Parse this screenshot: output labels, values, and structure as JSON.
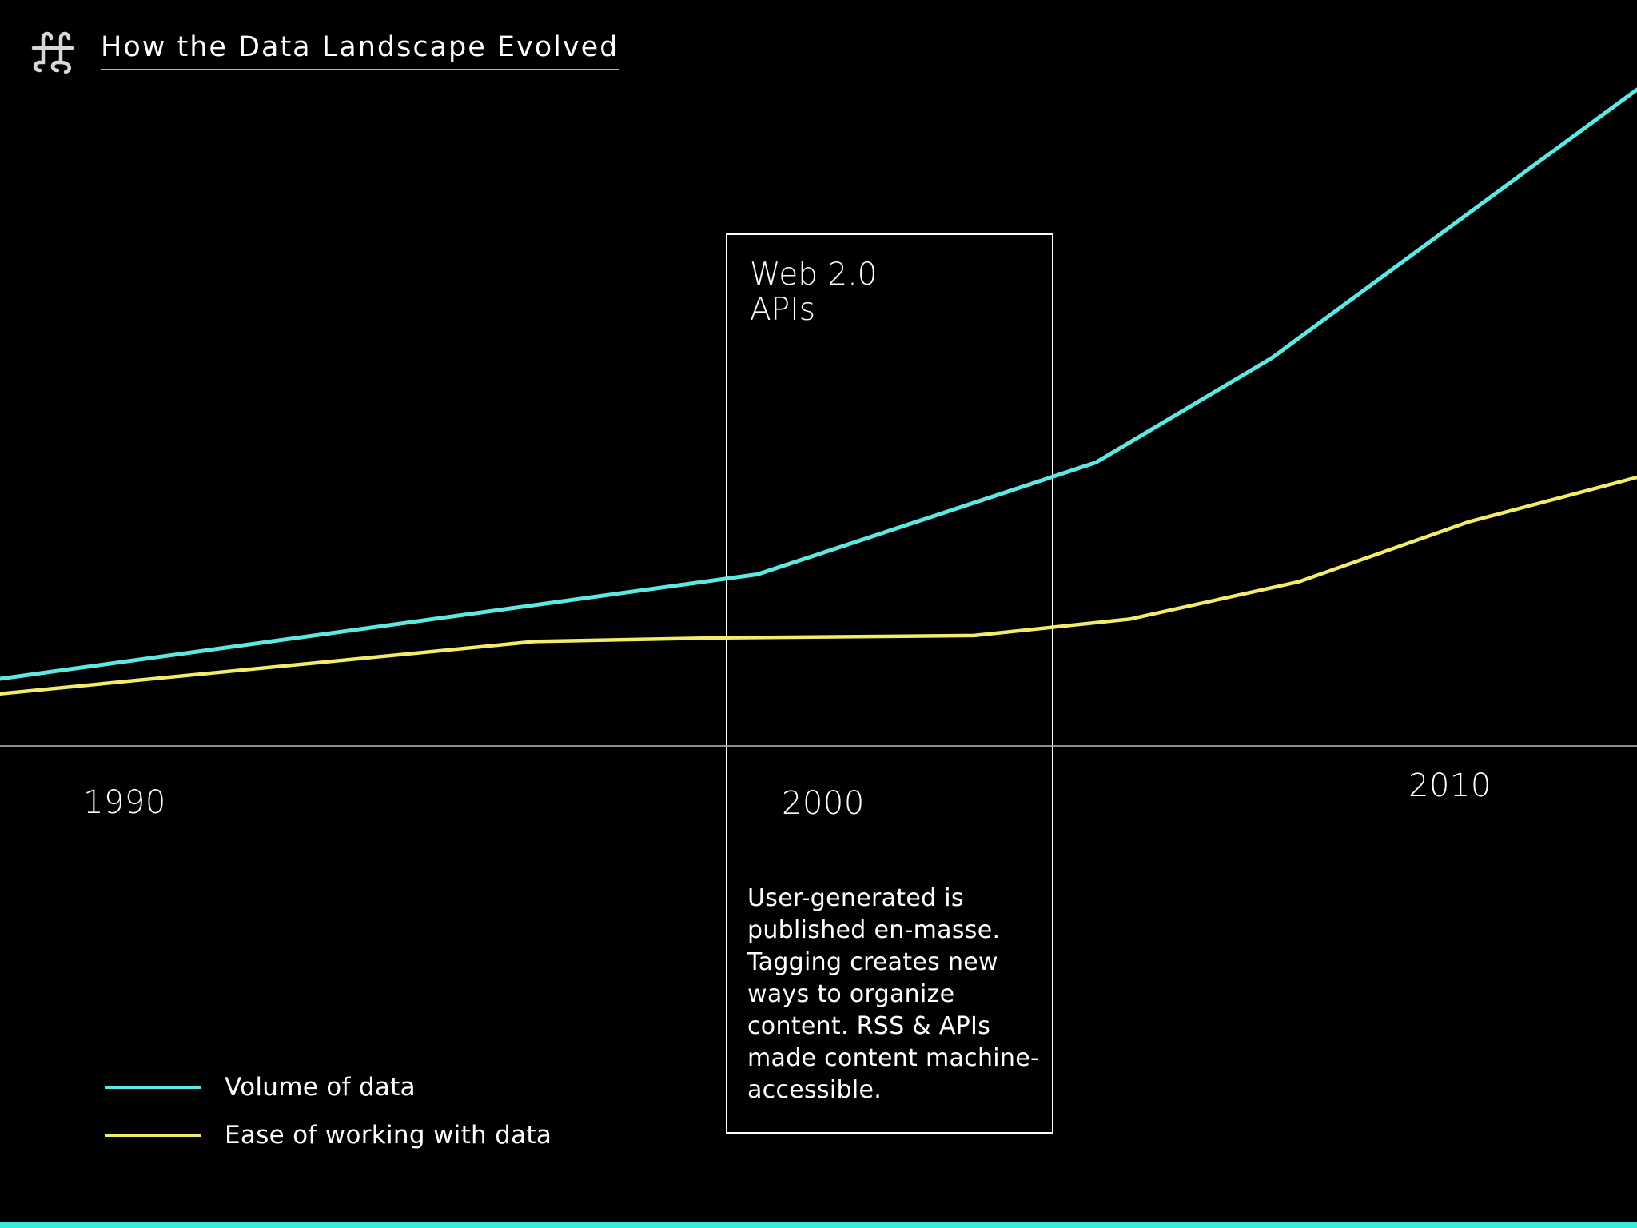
{
  "header": {
    "title": "How the Data Landscape Evolved",
    "logo_icon": "ampersand-logo-icon"
  },
  "colors": {
    "background": "#000000",
    "accent": "#3ee6e0",
    "volume_line": "#5ee8e4",
    "ease_line": "#f2ec6a",
    "annotation_border": "#ffffff",
    "axis": "#bbbbbb"
  },
  "chart_data": {
    "type": "line",
    "title": "How the Data Landscape Evolved",
    "xlabel": "",
    "ylabel": "",
    "xlim": [
      1988.3,
      2012.5
    ],
    "ylim": [
      0,
      100
    ],
    "x_ticks": [
      {
        "value": 1990,
        "label": "1990"
      },
      {
        "value": 2000,
        "label": "2000"
      },
      {
        "value": 2010,
        "label": "2010"
      }
    ],
    "grid": false,
    "legend_position": "bottom-left",
    "series": [
      {
        "name": "Volume of data",
        "color": "#5ee8e4",
        "x": [
          1988.3,
          1999.5,
          2004.5,
          2007.1,
          2012.5
        ],
        "y": [
          9,
          23,
          38,
          52,
          88
        ]
      },
      {
        "name": "Ease of working with data",
        "color": "#f2ec6a",
        "x": [
          1988.3,
          1996.2,
          1999,
          2002.7,
          2005,
          2007.5,
          2010,
          2012.5
        ],
        "y": [
          7,
          14,
          14.5,
          14.8,
          17,
          22,
          30,
          36
        ]
      }
    ],
    "annotations": [
      {
        "x_start": 1998.9,
        "x_end": 2003.7,
        "title_lines": [
          "Web 2.0",
          "APIs"
        ],
        "text": "User-generated is published en-masse. Tagging creates new ways to organize content. RSS & APIs made content machine-accessible."
      }
    ]
  }
}
